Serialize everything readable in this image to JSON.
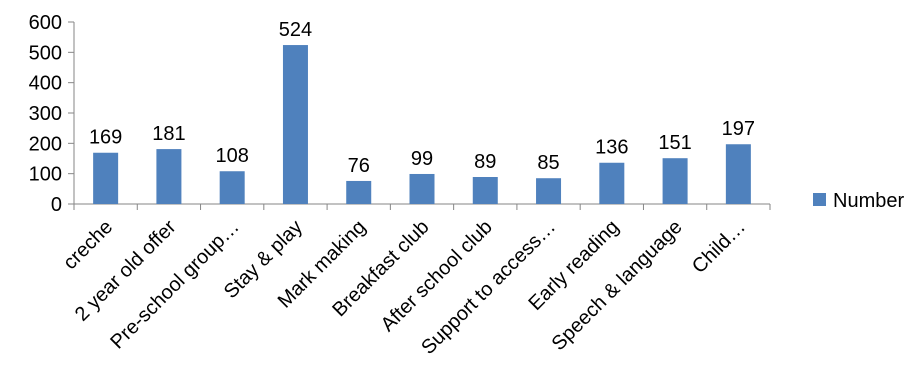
{
  "chart_data": {
    "type": "bar",
    "categories": [
      "creche",
      "2 year old offer",
      "Pre-school group…",
      "Stay & play",
      "Mark making",
      "Breakfast club",
      "After school club",
      "Support to access…",
      "Early reading",
      "Speech & language",
      "Child…"
    ],
    "series": [
      {
        "name": "Number",
        "values": [
          169,
          181,
          108,
          524,
          76,
          99,
          89,
          85,
          136,
          151,
          197
        ],
        "color": "#4F81BD"
      }
    ],
    "y_ticks": [
      0,
      100,
      200,
      300,
      400,
      500,
      600
    ],
    "ylim": [
      0,
      600
    ],
    "grid": false,
    "legend_position": "right",
    "data_labels": true
  }
}
